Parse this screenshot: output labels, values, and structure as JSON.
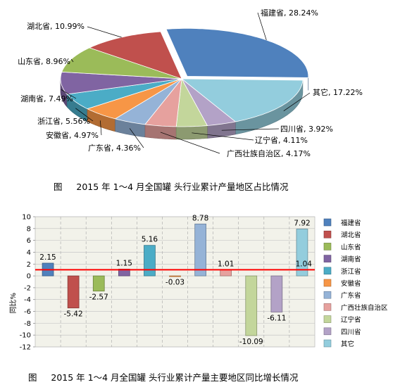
{
  "chart_data": [
    {
      "type": "pie",
      "caption": "图     2015 年 1～4 月全国罐 头行业累计产量地区占比情况",
      "slices": [
        {
          "label": "福建省",
          "value": 28.24,
          "value_text": "28.24%",
          "color": "#4F81BD"
        },
        {
          "label": "其它",
          "value": 17.22,
          "value_text": "17.22%",
          "color": "#93CDDD"
        },
        {
          "label": "四川省",
          "value": 3.92,
          "value_text": "3.92%",
          "color": "#B3A2C7"
        },
        {
          "label": "辽宁省",
          "value": 4.11,
          "value_text": "4.11%",
          "color": "#C3D69B"
        },
        {
          "label": "广西壮族自治区",
          "value": 4.17,
          "value_text": "4.17%",
          "color": "#E6A19E"
        },
        {
          "label": "广东省",
          "value": 4.36,
          "value_text": "4.36%",
          "color": "#95B3D7"
        },
        {
          "label": "安徽省",
          "value": 4.97,
          "value_text": "4.97%",
          "color": "#F79646"
        },
        {
          "label": "浙江省",
          "value": 5.56,
          "value_text": "5.56%",
          "color": "#4BACC6"
        },
        {
          "label": "湖南省",
          "value": 7.49,
          "value_text": "7.49%",
          "color": "#8064A2"
        },
        {
          "label": "山东省",
          "value": 8.96,
          "value_text": "8.96%",
          "color": "#9BBB59"
        },
        {
          "label": "湖北省",
          "value": 10.99,
          "value_text": "10.99%",
          "color": "#C0504D"
        }
      ]
    },
    {
      "type": "bar",
      "caption": "图     2015 年 1～4 月全国罐 头行业累计产量主要地区同比增长情况",
      "ylabel": "同比%",
      "ylim": [
        -12,
        10
      ],
      "yticks": [
        "10",
        "8",
        "6",
        "4",
        "2",
        "0",
        "-2",
        "-4",
        "-6",
        "-8",
        "-10",
        "-12"
      ],
      "grid": true,
      "legend": "right",
      "reference_line": {
        "value": 1.04,
        "color": "#FF0000"
      },
      "categories": [
        "福建省",
        "湖北省",
        "山东省",
        "湖南省",
        "浙江省",
        "安徽省",
        "广东省",
        "广西壮族自治区",
        "辽宁省",
        "四川省",
        "其它"
      ],
      "values": [
        2.15,
        -5.42,
        -2.57,
        1.15,
        5.16,
        -0.03,
        8.78,
        1.01,
        -10.09,
        -6.11,
        7.92
      ],
      "value_labels": [
        "2.15",
        "-5.42",
        "-2.57",
        "1.15",
        "5.16",
        "-0.03",
        "8.78",
        "1.01",
        "-10.09",
        "-6.11",
        "7.92"
      ],
      "reference_label": "1.04",
      "colors": [
        "#4F81BD",
        "#C0504D",
        "#9BBB59",
        "#8064A2",
        "#4BACC6",
        "#F79646",
        "#95B3D7",
        "#E6A19E",
        "#C3D69B",
        "#B3A2C7",
        "#93CDDD"
      ]
    }
  ]
}
